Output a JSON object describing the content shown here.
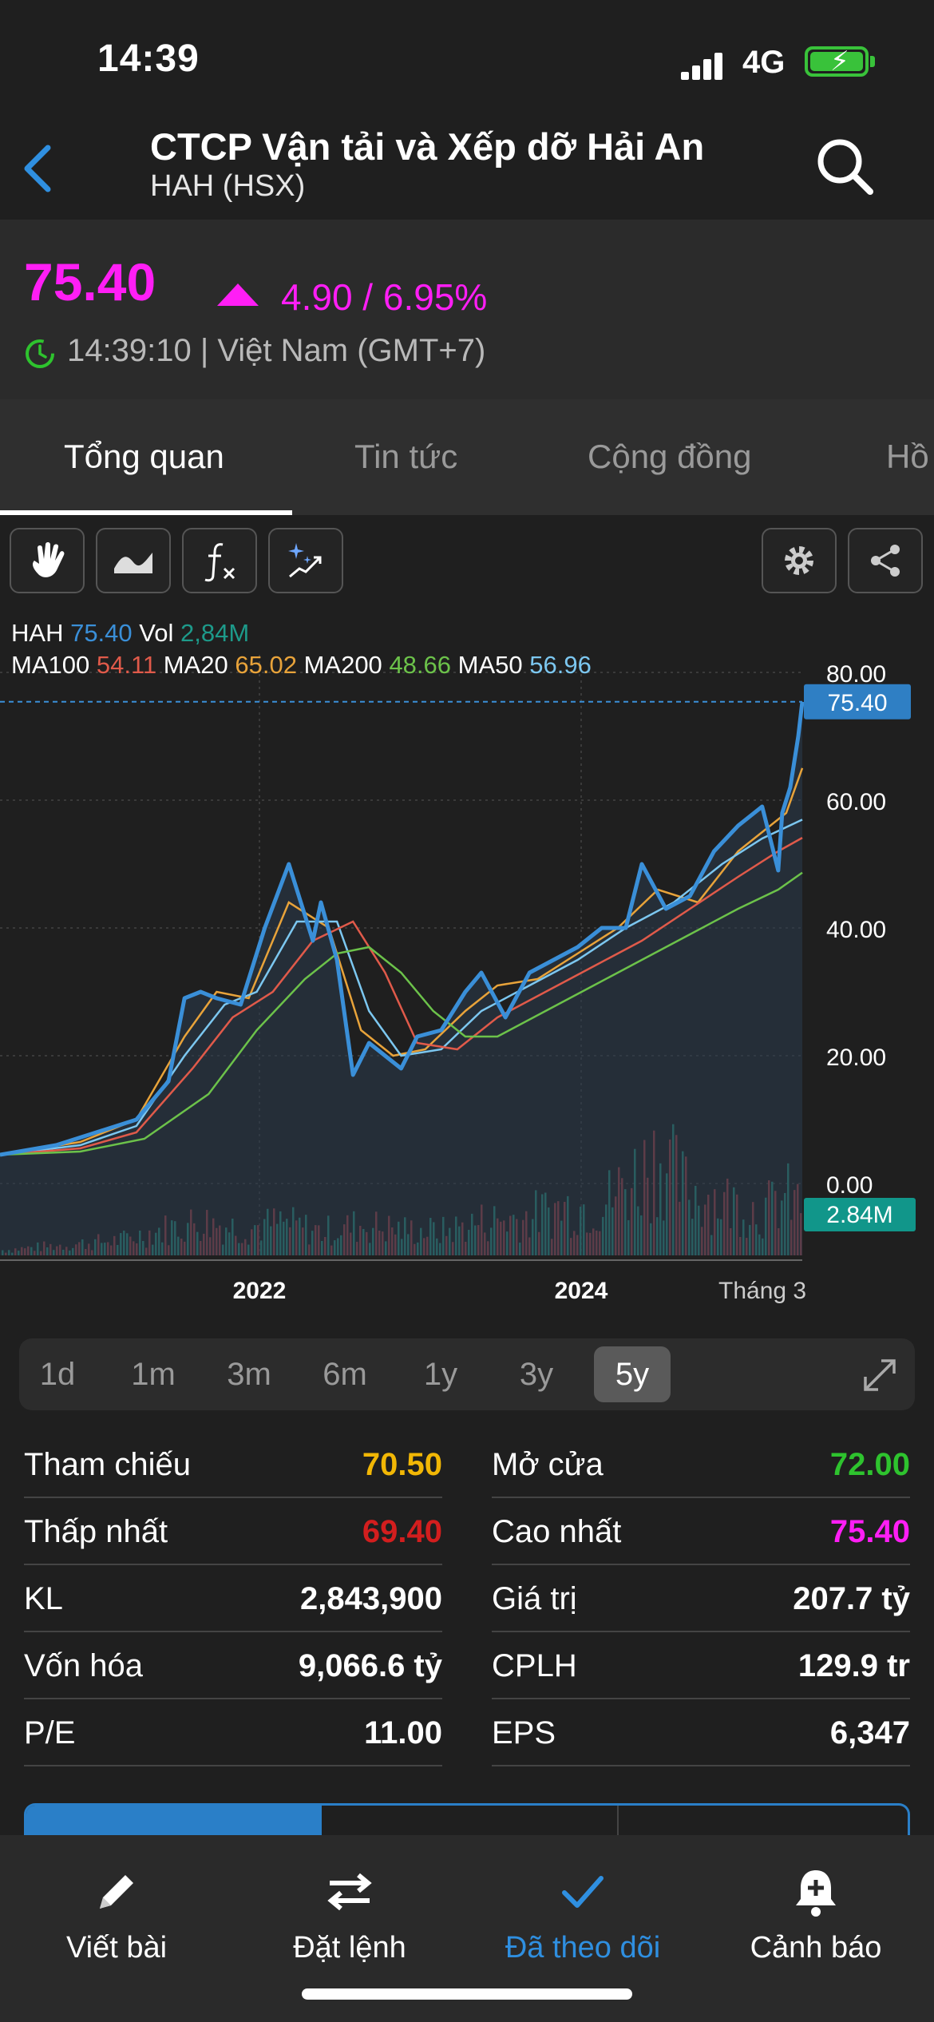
{
  "status_bar": {
    "time": "14:39",
    "network": "4G"
  },
  "header": {
    "company": "CTCP Vận tải và Xếp dỡ Hải An",
    "ticker": "HAH (HSX)"
  },
  "price": {
    "value": "75.40",
    "change": "4.90 / 6.95%",
    "time": "14:39:10 | Việt Nam (GMT+7)",
    "color": "#ff1ef5"
  },
  "tabs": [
    "Tổng quan",
    "Tin tức",
    "Cộng đồng",
    "Hồ"
  ],
  "toolbar": {
    "icons": [
      "hand-icon",
      "wave-chart-icon",
      "function-icon",
      "magic-icon",
      "settings-icon",
      "share-icon"
    ]
  },
  "legend": {
    "ticker": "HAH",
    "last": "75.40",
    "vol_label": "Vol",
    "vol": "2,84M",
    "ma100_label": "MA100",
    "ma100": "54.11",
    "ma20_label": "MA20",
    "ma20": "65.02",
    "ma200_label": "MA200",
    "ma200": "48.66",
    "ma50_label": "MA50",
    "ma50": "56.96"
  },
  "chart_data": {
    "type": "line",
    "x_tick_labels": [
      "2022",
      "2024",
      "Tháng 3"
    ],
    "y_tick_labels": [
      "80.00",
      "60.00",
      "40.00",
      "20.00",
      "0.00"
    ],
    "ylim": [
      0,
      80
    ],
    "last_price_label": "75.40",
    "last_volume_label": "2.84M",
    "series": [
      {
        "name": "HAH",
        "color": "#3a8fd8",
        "x": [
          0,
          0.07,
          0.12,
          0.17,
          0.21,
          0.23,
          0.25,
          0.27,
          0.3,
          0.33,
          0.36,
          0.39,
          0.4,
          0.42,
          0.44,
          0.46,
          0.48,
          0.5,
          0.52,
          0.55,
          0.58,
          0.6,
          0.63,
          0.66,
          0.69,
          0.72,
          0.75,
          0.78,
          0.8,
          0.83,
          0.86,
          0.89,
          0.92,
          0.95,
          0.97,
          0.975,
          0.985,
          0.995,
          1.0
        ],
        "values": [
          4.5,
          6,
          8,
          10,
          16,
          29,
          30,
          29,
          28,
          40,
          50,
          38,
          44,
          35,
          17,
          22,
          20,
          18,
          23,
          24,
          30,
          33,
          26,
          33,
          35,
          37,
          40,
          40,
          50,
          43,
          45,
          52,
          56,
          59,
          49,
          58,
          62,
          70,
          75.4
        ]
      },
      {
        "name": "MA20",
        "color": "#e8a33a",
        "x": [
          0,
          0.1,
          0.17,
          0.23,
          0.27,
          0.31,
          0.36,
          0.41,
          0.45,
          0.49,
          0.53,
          0.58,
          0.62,
          0.67,
          0.72,
          0.77,
          0.82,
          0.87,
          0.92,
          0.96,
          0.98,
          1.0
        ],
        "values": [
          4.5,
          6.5,
          10,
          23,
          30,
          29,
          44,
          40,
          24,
          20,
          21,
          27,
          31,
          32,
          36,
          40,
          46,
          44,
          52,
          56,
          58,
          65.02
        ]
      },
      {
        "name": "MA50",
        "color": "#7cc7f0",
        "x": [
          0,
          0.1,
          0.17,
          0.23,
          0.28,
          0.32,
          0.37,
          0.42,
          0.46,
          0.5,
          0.55,
          0.6,
          0.66,
          0.72,
          0.78,
          0.84,
          0.9,
          0.95,
          1.0
        ],
        "values": [
          4.5,
          6,
          9,
          20,
          28,
          30,
          41,
          41,
          27,
          20,
          21,
          27,
          31,
          35,
          40,
          44,
          50,
          54,
          56.96
        ]
      },
      {
        "name": "MA100",
        "color": "#e05a4a",
        "x": [
          0,
          0.1,
          0.17,
          0.24,
          0.29,
          0.34,
          0.39,
          0.44,
          0.48,
          0.52,
          0.57,
          0.62,
          0.68,
          0.74,
          0.8,
          0.86,
          0.92,
          0.97,
          1.0
        ],
        "values": [
          4.5,
          5.5,
          8,
          18,
          26,
          30,
          38,
          41,
          33,
          22,
          21,
          26,
          30,
          34,
          38,
          43,
          48,
          52,
          54.11
        ]
      },
      {
        "name": "MA200",
        "color": "#6cc24a",
        "x": [
          0,
          0.1,
          0.18,
          0.26,
          0.32,
          0.38,
          0.42,
          0.46,
          0.5,
          0.54,
          0.58,
          0.62,
          0.68,
          0.74,
          0.8,
          0.86,
          0.92,
          0.97,
          1.0
        ],
        "values": [
          4.5,
          5,
          7,
          14,
          24,
          32,
          36,
          37,
          33,
          27,
          23,
          23,
          27,
          31,
          35,
          39,
          43,
          46,
          48.66
        ]
      }
    ],
    "volume_series": {
      "name": "Vol",
      "ylim": [
        0,
        6.5
      ],
      "x": [
        0.0,
        0.05,
        0.1,
        0.15,
        0.2,
        0.25,
        0.3,
        0.35,
        0.4,
        0.45,
        0.5,
        0.55,
        0.6,
        0.65,
        0.7,
        0.75,
        0.8,
        0.82,
        0.85,
        0.9,
        0.95,
        0.98,
        1.0
      ],
      "values": [
        0.3,
        0.5,
        0.7,
        0.9,
        1.5,
        2.0,
        1.6,
        1.9,
        1.4,
        1.8,
        1.5,
        1.4,
        2.0,
        2.2,
        2.8,
        3.0,
        5.0,
        6.0,
        4.0,
        3.2,
        2.6,
        3.4,
        2.84
      ]
    }
  },
  "ranges": {
    "items": [
      "1d",
      "1m",
      "3m",
      "6m",
      "1y",
      "3y",
      "5y"
    ],
    "active": "5y"
  },
  "stats": {
    "left": [
      {
        "label": "Tham chiếu",
        "value": "70.50",
        "color": "#f2b705"
      },
      {
        "label": "Thấp nhất",
        "value": "69.40",
        "color": "#d31e1e"
      },
      {
        "label": "KL",
        "value": "2,843,900",
        "color": "#ffffff"
      },
      {
        "label": "Vốn hóa",
        "value": "9,066.6 tỷ",
        "color": "#ffffff"
      },
      {
        "label": "P/E",
        "value": "11.00",
        "color": "#ffffff"
      }
    ],
    "right": [
      {
        "label": "Mở cửa",
        "value": "72.00",
        "color": "#2ec32e"
      },
      {
        "label": "Cao nhất",
        "value": "75.40",
        "color": "#ff1ef5"
      },
      {
        "label": "Giá trị",
        "value": "207.7 tỷ",
        "color": "#ffffff"
      },
      {
        "label": "CPLH",
        "value": "129.9 tr",
        "color": "#ffffff"
      },
      {
        "label": "EPS",
        "value": "6,347",
        "color": "#ffffff"
      }
    ]
  },
  "bottom_nav": [
    {
      "label": "Viết bài",
      "icon": "pencil-icon"
    },
    {
      "label": "Đặt lệnh",
      "icon": "swap-arrows-icon"
    },
    {
      "label": "Đã theo dõi",
      "icon": "check-icon"
    },
    {
      "label": "Cảnh báo",
      "icon": "bell-plus-icon"
    }
  ]
}
